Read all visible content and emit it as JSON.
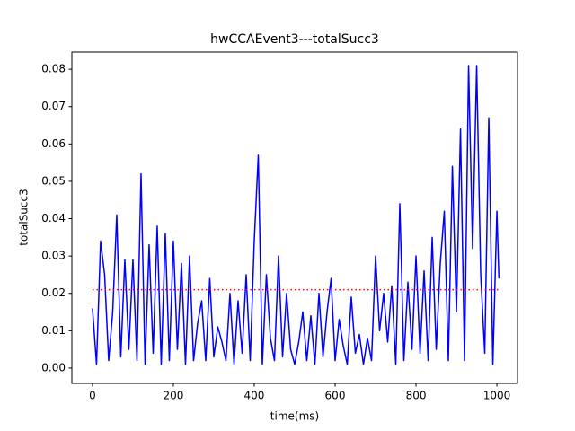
{
  "chart_data": {
    "type": "line",
    "title": "hwCCAEvent3---totalSucc3",
    "xlabel": "time(ms)",
    "ylabel": "totalSucc3",
    "x": [
      0,
      10,
      20,
      30,
      40,
      50,
      60,
      70,
      80,
      90,
      100,
      110,
      120,
      130,
      140,
      150,
      160,
      170,
      180,
      190,
      200,
      210,
      220,
      230,
      240,
      250,
      260,
      270,
      280,
      290,
      300,
      310,
      320,
      330,
      340,
      350,
      360,
      370,
      380,
      390,
      400,
      410,
      420,
      430,
      440,
      450,
      460,
      470,
      480,
      490,
      500,
      510,
      520,
      530,
      540,
      550,
      560,
      570,
      580,
      590,
      600,
      610,
      620,
      630,
      640,
      650,
      660,
      670,
      680,
      690,
      700,
      710,
      720,
      730,
      740,
      750,
      760,
      770,
      780,
      790,
      800,
      810,
      820,
      830,
      840,
      850,
      860,
      870,
      880,
      890,
      900,
      910,
      920,
      930,
      940,
      950,
      960,
      970,
      980,
      990,
      1000,
      1005
    ],
    "series": [
      {
        "name": "totalSucc3",
        "color": "#0000ff",
        "values": [
          0.016,
          0.001,
          0.034,
          0.025,
          0.002,
          0.015,
          0.041,
          0.003,
          0.029,
          0.005,
          0.029,
          0.002,
          0.052,
          0.001,
          0.033,
          0.004,
          0.038,
          0.001,
          0.036,
          0.002,
          0.034,
          0.005,
          0.028,
          0.001,
          0.03,
          0.002,
          0.012,
          0.018,
          0.002,
          0.024,
          0.003,
          0.011,
          0.007,
          0.002,
          0.02,
          0.001,
          0.018,
          0.004,
          0.025,
          0.002,
          0.034,
          0.057,
          0.001,
          0.025,
          0.008,
          0.002,
          0.03,
          0.003,
          0.02,
          0.005,
          0.001,
          0.007,
          0.015,
          0.002,
          0.014,
          0.001,
          0.02,
          0.003,
          0.015,
          0.024,
          0.002,
          0.013,
          0.006,
          0.001,
          0.019,
          0.004,
          0.009,
          0.001,
          0.008,
          0.002,
          0.03,
          0.01,
          0.02,
          0.007,
          0.022,
          0.001,
          0.044,
          0.002,
          0.023,
          0.005,
          0.03,
          0.004,
          0.026,
          0.002,
          0.035,
          0.005,
          0.028,
          0.042,
          0.002,
          0.054,
          0.015,
          0.064,
          0.002,
          0.081,
          0.032,
          0.081,
          0.025,
          0.004,
          0.067,
          0.001,
          0.042,
          0.024
        ]
      }
    ],
    "hlines": [
      {
        "value": 0.021,
        "color": "#ff0000"
      }
    ],
    "xlim": [
      -51,
      1051
    ],
    "ylim": [
      -0.0041,
      0.0846
    ],
    "xticks": [
      0,
      200,
      400,
      600,
      800,
      1000
    ],
    "yticks": [
      {
        "value": 0,
        "label": "0.00"
      },
      {
        "value": 0.01,
        "label": "0.01"
      },
      {
        "value": 0.02,
        "label": "0.02"
      },
      {
        "value": 0.03,
        "label": "0.03"
      },
      {
        "value": 0.04,
        "label": "0.04"
      },
      {
        "value": 0.05,
        "label": "0.05"
      },
      {
        "value": 0.06,
        "label": "0.06"
      },
      {
        "value": 0.07,
        "label": "0.07"
      },
      {
        "value": 0.08,
        "label": "0.08"
      }
    ],
    "grid": false
  }
}
